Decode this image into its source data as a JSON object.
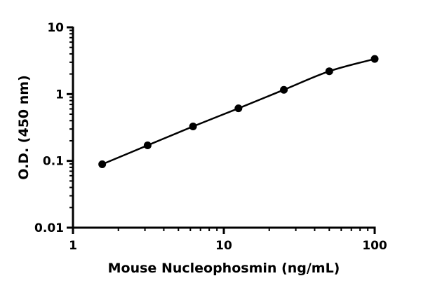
{
  "chart_data": {
    "type": "line",
    "title": "",
    "xlabel": "Mouse Nucleophosmin (ng/mL)",
    "ylabel": "O.D. (450 nm)",
    "xscale": "log",
    "yscale": "log",
    "xlim": [
      1,
      100
    ],
    "ylim": [
      0.01,
      10
    ],
    "xticks": [
      {
        "v": 1,
        "label": "1"
      },
      {
        "v": 10,
        "label": "10"
      },
      {
        "v": 100,
        "label": "100"
      }
    ],
    "yticks": [
      {
        "v": 0.01,
        "label": "0.01"
      },
      {
        "v": 0.1,
        "label": "0.1"
      },
      {
        "v": 1,
        "label": "1"
      },
      {
        "v": 10,
        "label": "10"
      }
    ],
    "grid": false,
    "series": [
      {
        "x": [
          1.5625,
          3.125,
          6.25,
          12.5,
          25,
          50,
          100
        ],
        "y": [
          0.089,
          0.171,
          0.328,
          0.612,
          1.16,
          2.2,
          3.36
        ],
        "marker": "circle",
        "color": "#000000"
      }
    ]
  }
}
